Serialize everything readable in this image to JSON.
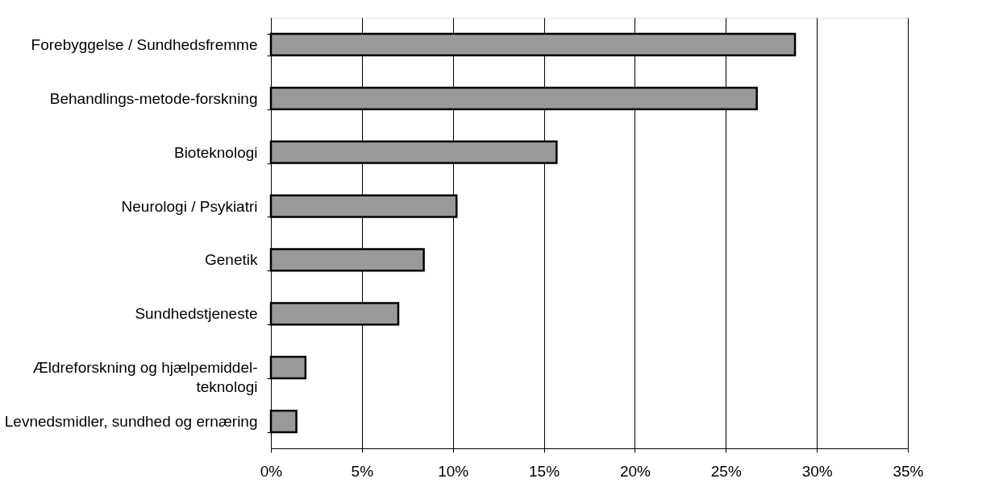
{
  "chart_data": {
    "type": "bar",
    "orientation": "horizontal",
    "categories": [
      "Forebyggelse / Sundhedsfremme",
      "Behandlings-metode-forskning",
      "Bioteknologi",
      "Neurologi / Psykiatri",
      "Genetik",
      "Sundhedstjeneste",
      "Ældreforskning og hjælpemiddel-\nteknologi",
      "Levnedsmidler, sundhed og ernæring"
    ],
    "values": [
      28.8,
      26.7,
      15.7,
      10.2,
      8.4,
      7.0,
      1.9,
      1.4
    ],
    "color": "#999999",
    "xlim": [
      0,
      35
    ],
    "xticks": [
      {
        "value": 0,
        "label": "0%"
      },
      {
        "value": 5,
        "label": "5%"
      },
      {
        "value": 10,
        "label": "10%"
      },
      {
        "value": 15,
        "label": "15%"
      },
      {
        "value": 20,
        "label": "20%"
      },
      {
        "value": 25,
        "label": "25%"
      },
      {
        "value": 30,
        "label": "30%"
      },
      {
        "value": 35,
        "label": "35%"
      }
    ],
    "grid": "x"
  }
}
